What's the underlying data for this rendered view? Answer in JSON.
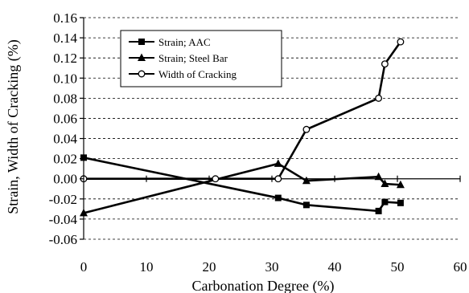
{
  "chart_data": {
    "type": "line",
    "xlabel": "Carbonation Degree (%)",
    "ylabel": "Strain, Width of Cracking (%)",
    "xlim": [
      0,
      60
    ],
    "ylim": [
      -0.06,
      0.16
    ],
    "x_ticks": [
      0,
      10,
      20,
      30,
      40,
      50,
      60
    ],
    "y_ticks": [
      -0.06,
      -0.04,
      -0.02,
      0.0,
      0.02,
      0.04,
      0.06,
      0.08,
      0.1,
      0.12,
      0.14,
      0.16
    ],
    "x_tick_labels": [
      "0",
      "10",
      "20",
      "30",
      "40",
      "50",
      "60"
    ],
    "y_tick_labels": [
      "-0.06",
      "-0.04",
      "-0.02",
      "0.00",
      "0.02",
      "0.04",
      "0.06",
      "0.08",
      "0.10",
      "0.12",
      "0.14",
      "0.16"
    ],
    "grid": "horizontal-dashed",
    "legend_position": "top-left",
    "series": [
      {
        "name": "Strain; AAC",
        "marker": "filled-square",
        "x": [
          0,
          31,
          35.5,
          47,
          48,
          50.5
        ],
        "y": [
          0.021,
          -0.019,
          -0.026,
          -0.032,
          -0.023,
          -0.024
        ]
      },
      {
        "name": "Strain; Steel Bar",
        "marker": "filled-triangle",
        "x": [
          0,
          31,
          35.5,
          47,
          48,
          50.5
        ],
        "y": [
          -0.034,
          0.015,
          -0.002,
          0.002,
          -0.005,
          -0.006
        ]
      },
      {
        "name": "Width of Cracking",
        "marker": "open-circle",
        "x": [
          0,
          21,
          31,
          35.5,
          47,
          48,
          50.5
        ],
        "y": [
          0.0,
          0.0,
          0.0,
          0.049,
          0.08,
          0.114,
          0.136
        ]
      }
    ]
  }
}
